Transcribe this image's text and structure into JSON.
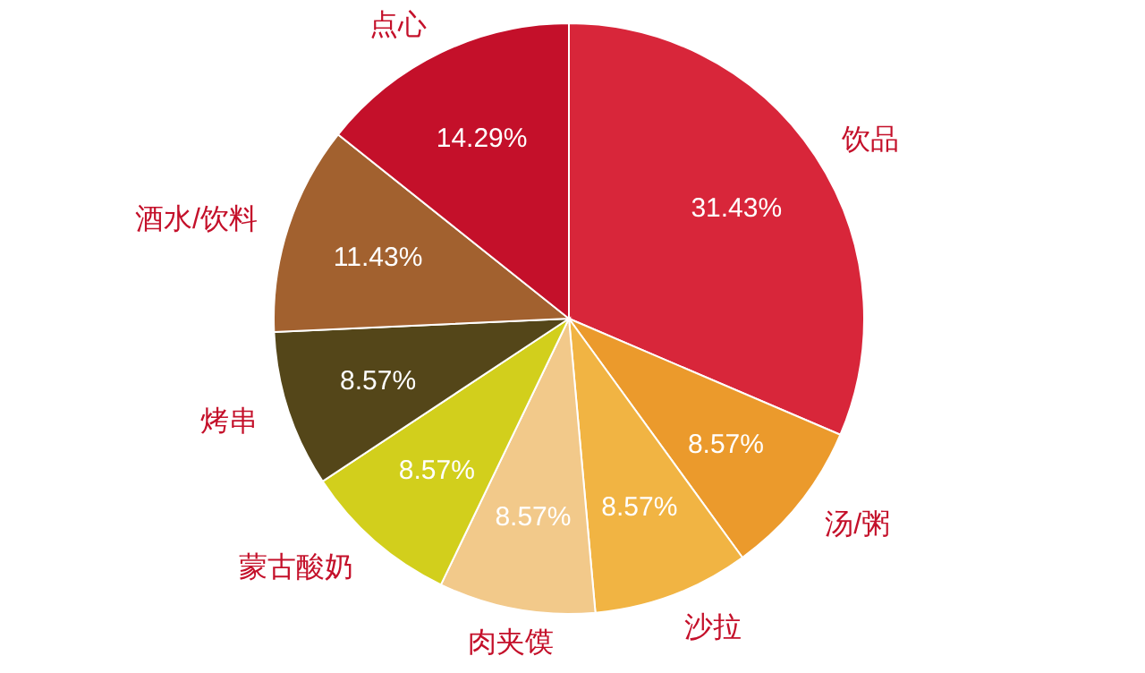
{
  "chart_data": {
    "type": "pie",
    "categories": [
      "饮品",
      "汤/粥",
      "沙拉",
      "肉夹馍",
      "蒙古酸奶",
      "烤串",
      "酒水/饮料",
      "点心"
    ],
    "values": [
      31.43,
      8.57,
      8.57,
      8.57,
      8.57,
      8.57,
      11.43,
      14.29
    ],
    "colors": [
      "#d8263a",
      "#eb9a2c",
      "#f1b443",
      "#f2c98a",
      "#d2cf1c",
      "#544619",
      "#a2612f",
      "#c4102a"
    ],
    "value_labels": [
      "31.43%",
      "8.57%",
      "8.57%",
      "8.57%",
      "8.57%",
      "8.57%",
      "11.43%",
      "14.29%"
    ]
  }
}
